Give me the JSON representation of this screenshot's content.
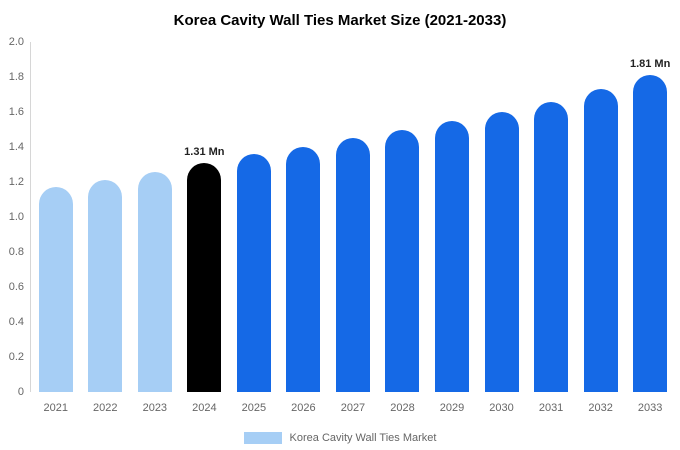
{
  "legend": {
    "label": "Korea Cavity Wall Ties Market",
    "swatch_color": "#A6CEF5"
  },
  "chart_data": {
    "type": "bar",
    "title": "Korea Cavity Wall Ties Market Size (2021-2033)",
    "categories": [
      "2021",
      "2022",
      "2023",
      "2024",
      "2025",
      "2026",
      "2027",
      "2028",
      "2029",
      "2030",
      "2031",
      "2032",
      "2033"
    ],
    "values": [
      1.17,
      1.21,
      1.26,
      1.31,
      1.36,
      1.4,
      1.45,
      1.5,
      1.55,
      1.6,
      1.66,
      1.73,
      1.81
    ],
    "bar_colors": [
      "#A6CEF5",
      "#A6CEF5",
      "#A6CEF5",
      "#000000",
      "#1569E6",
      "#1569E6",
      "#1569E6",
      "#1569E6",
      "#1569E6",
      "#1569E6",
      "#1569E6",
      "#1569E6",
      "#1569E6"
    ],
    "annotations": [
      {
        "category": "2024",
        "text": "1.31 Mn"
      },
      {
        "category": "2033",
        "text": "1.81 Mn"
      }
    ],
    "unit": "Mn",
    "ylim": [
      0,
      2.0
    ],
    "yticks": [
      "0",
      "0.2",
      "0.4",
      "0.6",
      "0.8",
      "1.0",
      "1.2",
      "1.4",
      "1.6",
      "1.8",
      "2.0"
    ],
    "grid": false,
    "legend_position": "bottom"
  }
}
